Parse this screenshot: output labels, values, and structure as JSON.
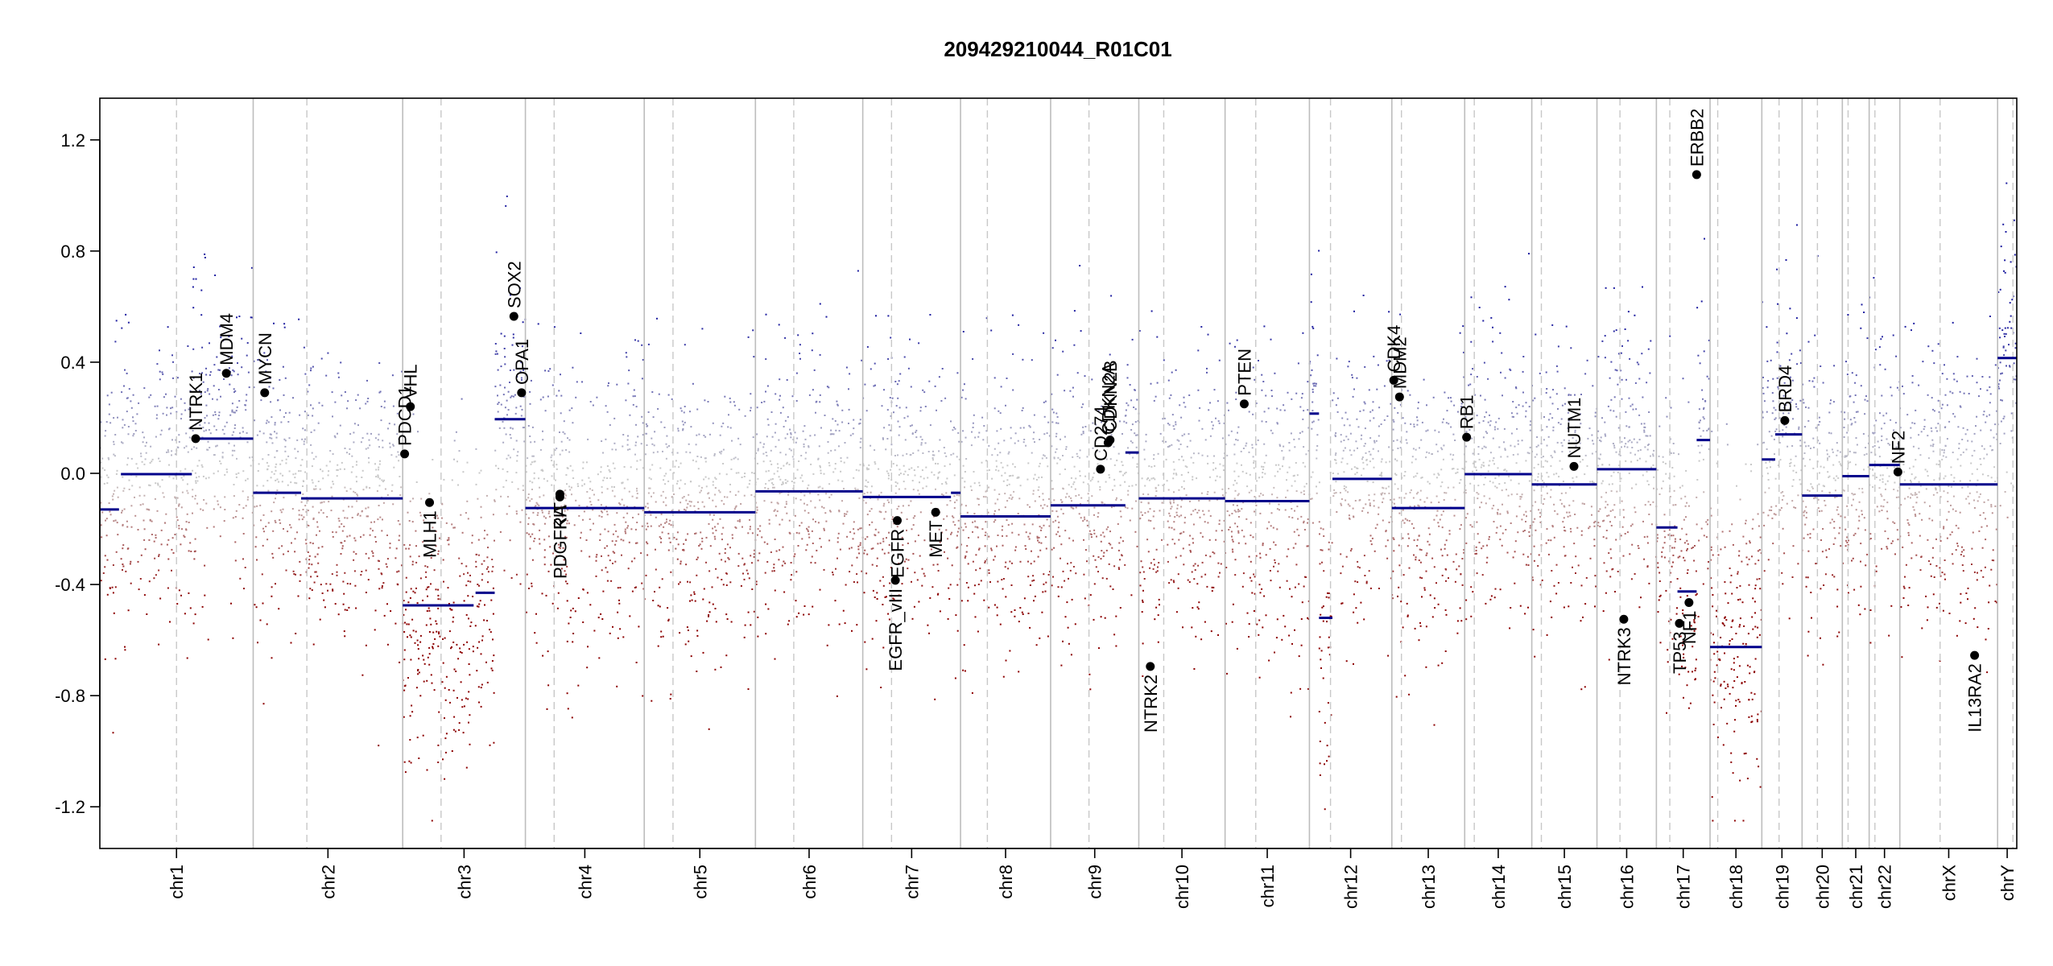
{
  "chart_data": {
    "type": "scatter",
    "title": "209429210044_R01C01",
    "xlabel": "",
    "ylabel": "",
    "ylim": [
      -1.35,
      1.35
    ],
    "y_ticks": [
      -1.2,
      -0.8,
      -0.4,
      0.0,
      0.4,
      0.8,
      1.2
    ],
    "y_tick_labels": [
      "-1.2",
      "-0.8",
      "-0.4",
      "0.0",
      "0.4",
      "0.8",
      "1.2"
    ],
    "clip": [
      -1.25,
      1.25
    ],
    "grid": false,
    "colors": {
      "gain": "#00008b",
      "neutral": "#c0c0c0",
      "loss": "#8b0000",
      "segment": "#00008b",
      "gene": "#000000",
      "border": "#c0c0c0"
    },
    "chromosomes": [
      {
        "name": "chr1",
        "start": 0.0,
        "end": 8.0,
        "mid": 4.0
      },
      {
        "name": "chr2",
        "start": 8.0,
        "end": 15.8,
        "mid": 11.9
      },
      {
        "name": "chr3",
        "start": 15.8,
        "end": 22.2,
        "mid": 19.0
      },
      {
        "name": "chr4",
        "start": 22.2,
        "end": 28.4,
        "mid": 25.3
      },
      {
        "name": "chr5",
        "start": 28.4,
        "end": 34.2,
        "mid": 31.3
      },
      {
        "name": "chr6",
        "start": 34.2,
        "end": 39.8,
        "mid": 37.0
      },
      {
        "name": "chr7",
        "start": 39.8,
        "end": 44.9,
        "mid": 42.35
      },
      {
        "name": "chr8",
        "start": 44.9,
        "end": 49.6,
        "mid": 47.25
      },
      {
        "name": "chr9",
        "start": 49.6,
        "end": 54.2,
        "mid": 51.9
      },
      {
        "name": "chr10",
        "start": 54.2,
        "end": 58.7,
        "mid": 56.45
      },
      {
        "name": "chr11",
        "start": 58.7,
        "end": 63.1,
        "mid": 60.9
      },
      {
        "name": "chr12",
        "start": 63.1,
        "end": 67.4,
        "mid": 65.25
      },
      {
        "name": "chr13",
        "start": 67.4,
        "end": 71.2,
        "mid": 69.3
      },
      {
        "name": "chr14",
        "start": 71.2,
        "end": 74.7,
        "mid": 72.95
      },
      {
        "name": "chr15",
        "start": 74.7,
        "end": 78.1,
        "mid": 76.4
      },
      {
        "name": "chr16",
        "start": 78.1,
        "end": 81.2,
        "mid": 79.65
      },
      {
        "name": "chr17",
        "start": 81.2,
        "end": 84.0,
        "mid": 82.6
      },
      {
        "name": "chr18",
        "start": 84.0,
        "end": 86.7,
        "mid": 85.35
      },
      {
        "name": "chr19",
        "start": 86.7,
        "end": 88.8,
        "mid": 87.75
      },
      {
        "name": "chr20",
        "start": 88.8,
        "end": 90.9,
        "mid": 89.85
      },
      {
        "name": "chr21",
        "start": 90.9,
        "end": 92.3,
        "mid": 91.6
      },
      {
        "name": "chr22",
        "start": 92.3,
        "end": 93.9,
        "mid": 93.1
      },
      {
        "name": "chrX",
        "start": 93.9,
        "end": 99.0,
        "mid": 96.45
      },
      {
        "name": "chrY",
        "start": 99.0,
        "end": 100.0,
        "mid": 99.5
      }
    ],
    "centromeres": [
      4.0,
      10.8,
      17.8,
      23.7,
      29.9,
      36.2,
      41.3,
      46.3,
      51.6,
      55.5,
      60.3,
      64.2,
      67.9,
      71.7,
      75.2,
      79.3,
      81.9,
      84.4,
      87.6,
      89.6,
      91.2,
      92.6,
      96.0,
      99.8
    ],
    "segments": [
      {
        "chr": "chr1",
        "x0": 0.0,
        "x1": 1.0,
        "y": -0.13
      },
      {
        "chr": "chr1",
        "x0": 1.1,
        "x1": 4.8,
        "y": -0.003
      },
      {
        "chr": "chr1",
        "x0": 4.8,
        "x1": 8.0,
        "y": 0.125
      },
      {
        "chr": "chr2",
        "x0": 8.0,
        "x1": 10.5,
        "y": -0.07
      },
      {
        "chr": "chr2",
        "x0": 10.5,
        "x1": 15.8,
        "y": -0.09
      },
      {
        "chr": "chr3",
        "x0": 15.8,
        "x1": 19.5,
        "y": -0.475
      },
      {
        "chr": "chr3",
        "x0": 19.6,
        "x1": 20.6,
        "y": -0.43
      },
      {
        "chr": "chr3",
        "x0": 20.6,
        "x1": 22.2,
        "y": 0.195
      },
      {
        "chr": "chr4",
        "x0": 22.2,
        "x1": 28.4,
        "y": -0.125
      },
      {
        "chr": "chr5",
        "x0": 28.4,
        "x1": 34.2,
        "y": -0.14
      },
      {
        "chr": "chr6",
        "x0": 34.2,
        "x1": 39.8,
        "y": -0.065
      },
      {
        "chr": "chr7",
        "x0": 39.8,
        "x1": 44.4,
        "y": -0.085
      },
      {
        "chr": "chr7",
        "x0": 44.4,
        "x1": 44.9,
        "y": -0.07
      },
      {
        "chr": "chr8",
        "x0": 44.9,
        "x1": 49.6,
        "y": -0.155
      },
      {
        "chr": "chr9",
        "x0": 49.6,
        "x1": 53.5,
        "y": -0.115
      },
      {
        "chr": "chr9",
        "x0": 53.5,
        "x1": 54.2,
        "y": 0.075
      },
      {
        "chr": "chr10",
        "x0": 54.2,
        "x1": 58.7,
        "y": -0.09
      },
      {
        "chr": "chr11",
        "x0": 58.7,
        "x1": 63.1,
        "y": -0.1
      },
      {
        "chr": "chr12",
        "x0": 63.1,
        "x1": 63.6,
        "y": 0.215
      },
      {
        "chr": "chr12",
        "x0": 63.6,
        "x1": 64.3,
        "y": -0.52
      },
      {
        "chr": "chr12",
        "x0": 64.3,
        "x1": 67.4,
        "y": -0.02
      },
      {
        "chr": "chr13",
        "x0": 67.4,
        "x1": 71.2,
        "y": -0.125
      },
      {
        "chr": "chr14",
        "x0": 71.2,
        "x1": 74.7,
        "y": -0.003
      },
      {
        "chr": "chr15",
        "x0": 74.7,
        "x1": 78.1,
        "y": -0.04
      },
      {
        "chr": "chr16",
        "x0": 78.1,
        "x1": 81.2,
        "y": 0.015
      },
      {
        "chr": "chr17",
        "x0": 81.2,
        "x1": 82.3,
        "y": -0.195
      },
      {
        "chr": "chr17",
        "x0": 82.3,
        "x1": 83.3,
        "y": -0.425
      },
      {
        "chr": "chr17",
        "x0": 83.3,
        "x1": 84.0,
        "y": 0.12
      },
      {
        "chr": "chr18",
        "x0": 84.0,
        "x1": 86.7,
        "y": -0.625
      },
      {
        "chr": "chr19",
        "x0": 86.7,
        "x1": 87.4,
        "y": 0.05
      },
      {
        "chr": "chr19",
        "x0": 87.4,
        "x1": 88.8,
        "y": 0.14
      },
      {
        "chr": "chr20",
        "x0": 88.8,
        "x1": 90.9,
        "y": -0.08
      },
      {
        "chr": "chr21",
        "x0": 90.9,
        "x1": 92.3,
        "y": -0.01
      },
      {
        "chr": "chr22",
        "x0": 92.3,
        "x1": 93.9,
        "y": 0.03
      },
      {
        "chr": "chrX",
        "x0": 93.9,
        "x1": 99.0,
        "y": -0.04
      },
      {
        "chr": "chrY",
        "x0": 99.0,
        "x1": 100.0,
        "y": 0.415
      }
    ],
    "genes": [
      {
        "name": "NTRK1",
        "x": 5.0,
        "y": 0.125
      },
      {
        "name": "MDM4",
        "x": 6.6,
        "y": 0.36
      },
      {
        "name": "MYCN",
        "x": 8.6,
        "y": 0.29
      },
      {
        "name": "PDCD1",
        "x": 15.9,
        "y": 0.07
      },
      {
        "name": "VHL",
        "x": 16.2,
        "y": 0.24
      },
      {
        "name": "MLH1",
        "x": 17.2,
        "y": -0.105
      },
      {
        "name": "SOX2",
        "x": 21.6,
        "y": 0.565
      },
      {
        "name": "OPA1",
        "x": 22.0,
        "y": 0.29
      },
      {
        "name": "PDGFRA",
        "x": 24.0,
        "y": -0.085
      },
      {
        "name": "KIT",
        "x": 24.0,
        "y": -0.075
      },
      {
        "name": "EGFR_vIII",
        "x": 41.5,
        "y": -0.385
      },
      {
        "name": "EGFR",
        "x": 41.6,
        "y": -0.17
      },
      {
        "name": "MET",
        "x": 43.6,
        "y": -0.14
      },
      {
        "name": "CD274",
        "x": 52.2,
        "y": 0.015
      },
      {
        "name": "CDKN2A",
        "x": 52.6,
        "y": 0.11
      },
      {
        "name": "CDKN2B",
        "x": 52.7,
        "y": 0.12
      },
      {
        "name": "NTRK2",
        "x": 54.8,
        "y": -0.695
      },
      {
        "name": "PTEN",
        "x": 59.7,
        "y": 0.25
      },
      {
        "name": "CDK4",
        "x": 67.5,
        "y": 0.335
      },
      {
        "name": "MDM2",
        "x": 67.8,
        "y": 0.275
      },
      {
        "name": "RB1",
        "x": 71.3,
        "y": 0.13
      },
      {
        "name": "NUTM1",
        "x": 76.9,
        "y": 0.025
      },
      {
        "name": "NTRK3",
        "x": 79.5,
        "y": -0.525
      },
      {
        "name": "TP53",
        "x": 82.4,
        "y": -0.54
      },
      {
        "name": "NF1",
        "x": 82.9,
        "y": -0.465
      },
      {
        "name": "ERBB2",
        "x": 83.3,
        "y": 1.075
      },
      {
        "name": "BRD4",
        "x": 87.9,
        "y": 0.19
      },
      {
        "name": "NF2",
        "x": 93.8,
        "y": 0.005
      },
      {
        "name": "IL13RA2",
        "x": 97.8,
        "y": -0.655
      }
    ]
  }
}
